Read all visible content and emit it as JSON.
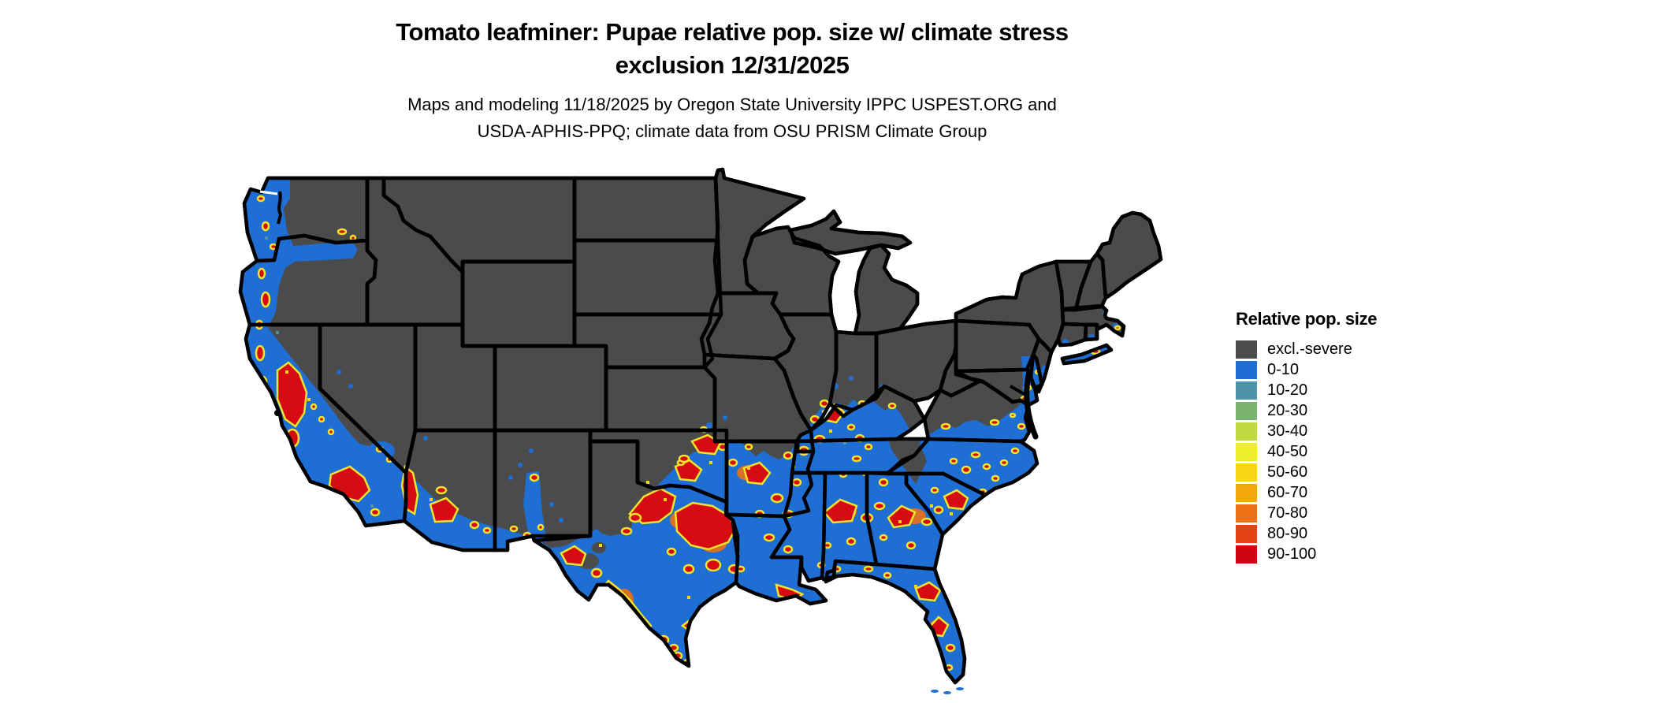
{
  "header": {
    "title_line1": "Tomato leafminer: Pupae relative pop. size w/ climate stress",
    "title_line2": "exclusion 12/31/2025",
    "subtitle_line1": "Maps and modeling 11/18/2025 by Oregon State University IPPC USPEST.ORG and",
    "subtitle_line2": "USDA-APHIS-PPQ; climate data from OSU PRISM Climate Group"
  },
  "legend": {
    "title": "Relative pop. size",
    "items": [
      {
        "label": "excl.-severe",
        "color": "#4b4b4b"
      },
      {
        "label": "0-10",
        "color": "#1e6ed3"
      },
      {
        "label": "10-20",
        "color": "#4e93a7"
      },
      {
        "label": "20-30",
        "color": "#7db370"
      },
      {
        "label": "30-40",
        "color": "#c2d83f"
      },
      {
        "label": "40-50",
        "color": "#eded29"
      },
      {
        "label": "50-60",
        "color": "#f8d613"
      },
      {
        "label": "60-70",
        "color": "#f1a70e"
      },
      {
        "label": "70-80",
        "color": "#ec7014"
      },
      {
        "label": "80-90",
        "color": "#e64216"
      },
      {
        "label": "90-100",
        "color": "#d10511"
      }
    ]
  },
  "map": {
    "colors": {
      "excluded": "#4b4b4b",
      "border": "#000000",
      "water": "#ffffff",
      "pop_0_10": "#1e6ed3",
      "pop_90_100": "#d60c12",
      "ring_70_80": "#ec7014",
      "fringe_40_50": "#efe52a",
      "speck_50_60": "#f8d613",
      "speck_10_20": "#4e93a7"
    }
  }
}
